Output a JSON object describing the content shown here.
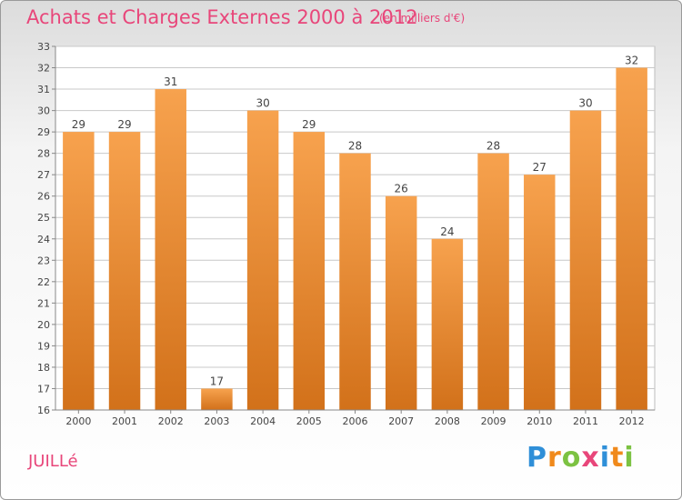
{
  "header": {
    "title": "Achats et Charges Externes 2000 à 2012",
    "unit_note": "(en milliers d'€)"
  },
  "footer": {
    "commune": "JUILLé",
    "logo_text": "Proxiti",
    "logo_letters": [
      {
        "char": "P",
        "color": "#2f8fd8"
      },
      {
        "char": "r",
        "color": "#f08a1c"
      },
      {
        "char": "o",
        "color": "#7cc242"
      },
      {
        "char": "x",
        "color": "#e8467a"
      },
      {
        "char": "i",
        "color": "#2f8fd8"
      },
      {
        "char": "t",
        "color": "#f08a1c"
      },
      {
        "char": "i",
        "color": "#7cc242"
      }
    ]
  },
  "colors": {
    "bar_light": "#f7a24e",
    "bar_dark": "#d2711a",
    "grid": "#c8c8c8",
    "text": "#444444",
    "accent": "#e8467a"
  },
  "chart_data": {
    "type": "bar",
    "title": "Achats et Charges Externes 2000 à 2012",
    "subtitle": "(en milliers d'€)",
    "xlabel": "",
    "ylabel": "",
    "categories": [
      "2000",
      "2001",
      "2002",
      "2003",
      "2004",
      "2005",
      "2006",
      "2007",
      "2008",
      "2009",
      "2010",
      "2011",
      "2012"
    ],
    "values": [
      29,
      29,
      31,
      17,
      30,
      29,
      28,
      26,
      24,
      28,
      27,
      30,
      32
    ],
    "data_labels": [
      "29",
      "29",
      "31",
      "17",
      "30",
      "29",
      "28",
      "26",
      "24",
      "28",
      "27",
      "30",
      "32"
    ],
    "ylim": [
      16,
      33
    ],
    "yticks": [
      16,
      17,
      18,
      19,
      20,
      21,
      22,
      23,
      24,
      25,
      26,
      27,
      28,
      29,
      30,
      31,
      32,
      33
    ],
    "grid": true,
    "legend": "none"
  }
}
